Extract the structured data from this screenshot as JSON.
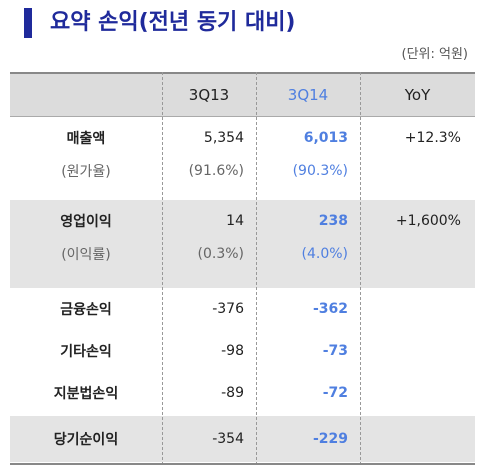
{
  "title": "요약 손익(전년 동기 대비)",
  "unit": "(단위: 억원)",
  "columns": [
    "",
    "3Q13",
    "3Q14",
    "YoY"
  ],
  "rows": [
    {
      "label": "매출액",
      "v1": "5,354",
      "v2": "6,013",
      "yoy": "+12.3%"
    },
    {
      "label": "(원가율)",
      "v1": "(91.6%)",
      "v2": "(90.3%)",
      "yoy": ""
    },
    {
      "label": "영업이익",
      "v1": "14",
      "v2": "238",
      "yoy": "+1,600%"
    },
    {
      "label": "(이익률)",
      "v1": "(0.3%)",
      "v2": "(4.0%)",
      "yoy": ""
    },
    {
      "label": "금융손익",
      "v1": "-376",
      "v2": "-362",
      "yoy": ""
    },
    {
      "label": "기타손익",
      "v1": "-98",
      "v2": "-73",
      "yoy": ""
    },
    {
      "label": "지분법손익",
      "v1": "-89",
      "v2": "-72",
      "yoy": ""
    },
    {
      "label": "당기순이익",
      "v1": "-354",
      "v2": "-229",
      "yoy": ""
    }
  ],
  "colors": {
    "title": "#1f2a9b",
    "highlight": "#4f7fe0",
    "shade": "#e4e4e4"
  }
}
